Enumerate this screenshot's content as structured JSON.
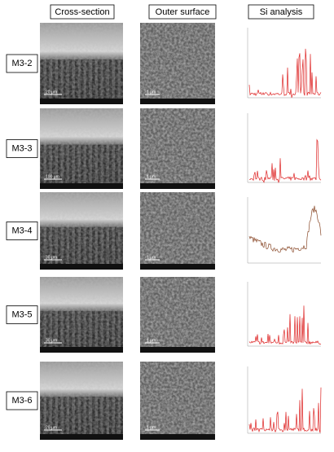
{
  "header": {
    "columns": [
      "Cross-section",
      "Outer surface",
      "Si analysis"
    ]
  },
  "rows": [
    {
      "label": "M3-2",
      "cross_scale": "20 µm",
      "surface_scale": "1 µm"
    },
    {
      "label": "M3-3",
      "cross_scale": "100 µm",
      "surface_scale": "1 µm"
    },
    {
      "label": "M3-4",
      "cross_scale": "30 µm",
      "surface_scale": "1 µm"
    },
    {
      "label": "M3-5",
      "cross_scale": "30 µm",
      "surface_scale": "1 µm"
    },
    {
      "label": "M3-6",
      "cross_scale": "20 µm",
      "surface_scale": "1 µm"
    }
  ]
}
